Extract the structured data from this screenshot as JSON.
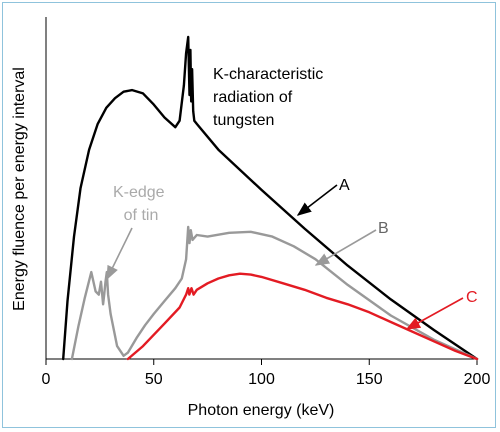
{
  "chart_data": {
    "type": "line",
    "xlabel": "Photon energy (keV)",
    "ylabel": "Energy fluence per energy interval",
    "xlim": [
      0,
      200
    ],
    "ylim": [
      0,
      100
    ],
    "xticks": [
      0,
      50,
      100,
      150,
      200
    ],
    "grid": false,
    "legend": "none",
    "series": [
      {
        "name": "A",
        "color": "#000000",
        "points": [
          [
            8,
            0
          ],
          [
            10,
            18
          ],
          [
            13,
            38
          ],
          [
            16,
            53
          ],
          [
            20,
            65
          ],
          [
            24,
            73
          ],
          [
            28,
            78
          ],
          [
            32,
            81
          ],
          [
            36,
            83
          ],
          [
            40,
            83.5
          ],
          [
            45,
            82.5
          ],
          [
            50,
            79
          ],
          [
            55,
            75
          ],
          [
            60,
            72
          ],
          [
            62,
            74
          ],
          [
            64,
            85
          ],
          [
            65,
            95
          ],
          [
            66,
            100
          ],
          [
            66.6,
            82
          ],
          [
            67,
            96
          ],
          [
            67.4,
            80
          ],
          [
            67.8,
            90
          ],
          [
            68.3,
            77
          ],
          [
            68.8,
            74
          ],
          [
            70,
            73
          ],
          [
            80,
            65
          ],
          [
            100,
            52.5
          ],
          [
            120,
            40.5
          ],
          [
            140,
            29
          ],
          [
            160,
            18.5
          ],
          [
            180,
            9
          ],
          [
            200,
            0
          ]
        ]
      },
      {
        "name": "B",
        "color": "#999999",
        "points": [
          [
            12,
            0
          ],
          [
            15,
            10
          ],
          [
            18,
            19
          ],
          [
            21,
            27
          ],
          [
            23,
            21
          ],
          [
            24.5,
            20
          ],
          [
            25.5,
            24
          ],
          [
            26.5,
            17
          ],
          [
            27,
            20
          ],
          [
            27.6,
            24
          ],
          [
            28.2,
            27
          ],
          [
            28.8,
            20
          ],
          [
            30,
            14
          ],
          [
            33,
            4
          ],
          [
            36,
            1
          ],
          [
            38,
            2
          ],
          [
            42,
            6.5
          ],
          [
            46,
            10.5
          ],
          [
            50,
            14
          ],
          [
            55,
            18
          ],
          [
            60,
            22
          ],
          [
            63,
            25
          ],
          [
            65,
            31
          ],
          [
            66,
            41
          ],
          [
            66.6,
            36
          ],
          [
            67.2,
            40
          ],
          [
            68,
            37
          ],
          [
            70,
            38.5
          ],
          [
            75,
            38
          ],
          [
            85,
            39.2
          ],
          [
            95,
            39.5
          ],
          [
            105,
            38
          ],
          [
            115,
            35
          ],
          [
            125,
            31
          ],
          [
            140,
            23
          ],
          [
            160,
            13.5
          ],
          [
            180,
            6
          ],
          [
            200,
            0
          ]
        ]
      },
      {
        "name": "C",
        "color": "#e31b23",
        "points": [
          [
            38,
            0
          ],
          [
            45,
            4
          ],
          [
            55,
            11
          ],
          [
            62,
            16
          ],
          [
            65,
            20
          ],
          [
            66,
            22
          ],
          [
            66.5,
            20
          ],
          [
            67,
            21
          ],
          [
            67.5,
            22
          ],
          [
            68.5,
            20
          ],
          [
            70,
            21.5
          ],
          [
            75,
            23.5
          ],
          [
            80,
            25
          ],
          [
            85,
            26
          ],
          [
            90,
            26.5
          ],
          [
            95,
            26.2
          ],
          [
            100,
            25.5
          ],
          [
            110,
            23.5
          ],
          [
            120,
            21.5
          ],
          [
            130,
            19
          ],
          [
            140,
            17
          ],
          [
            150,
            14.5
          ],
          [
            160,
            11.5
          ],
          [
            170,
            8.5
          ],
          [
            180,
            5.5
          ],
          [
            190,
            2.5
          ],
          [
            200,
            0
          ]
        ]
      }
    ],
    "annotations": [
      {
        "lines": [
          "K-characteristic",
          "radiation of",
          "tungsten"
        ],
        "color": "#000000"
      },
      {
        "lines": [
          "K-edge",
          "of tin"
        ],
        "color": "#aaaaaa"
      },
      {
        "lines": [
          "A"
        ],
        "color": "#000000"
      },
      {
        "lines": [
          "B"
        ],
        "color": "#666666"
      },
      {
        "lines": [
          "C"
        ],
        "color": "#e31b23"
      }
    ]
  }
}
